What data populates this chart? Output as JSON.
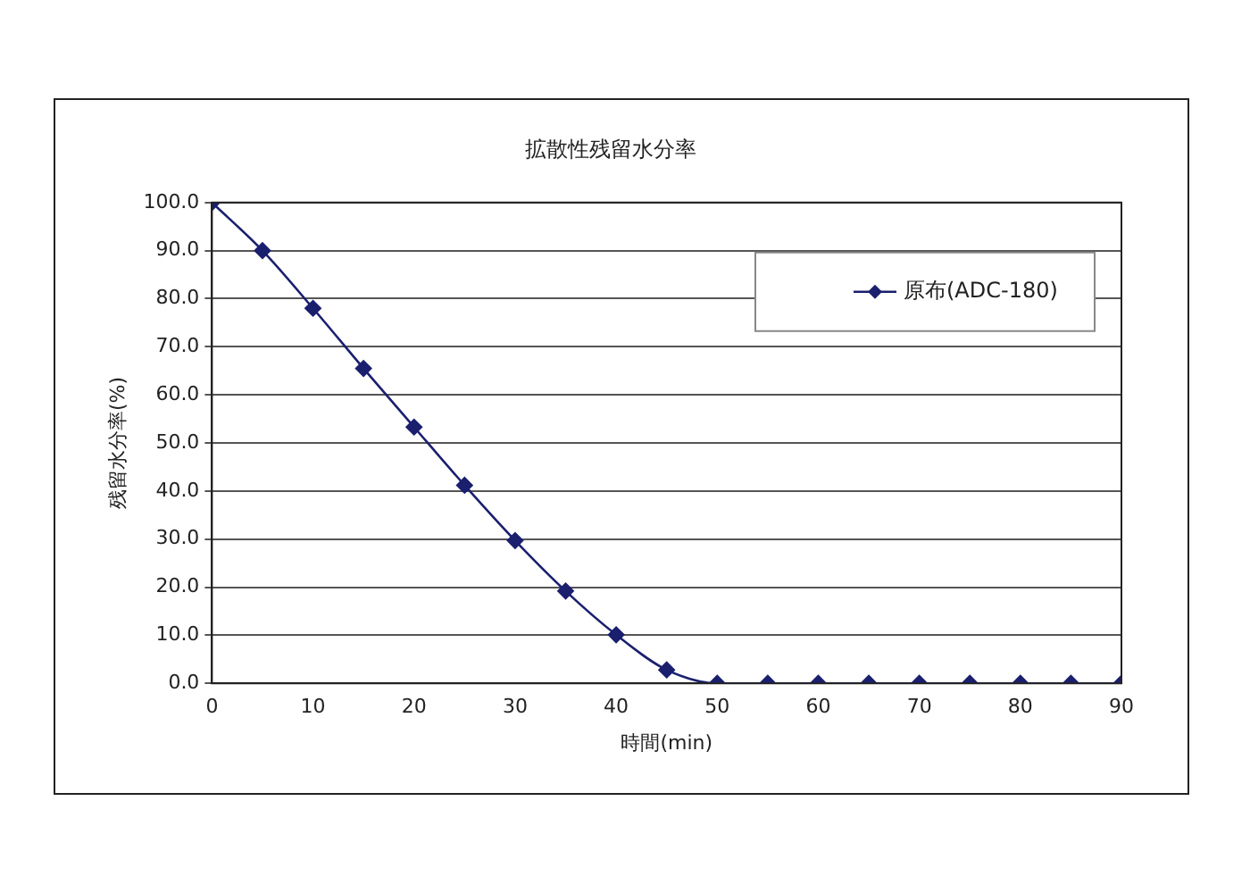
{
  "chart_data": {
    "type": "line",
    "title": "拡散性残留水分率",
    "xlabel": "時間(min)",
    "ylabel": "残留水分率(%)",
    "x": [
      0,
      5,
      10,
      15,
      20,
      25,
      30,
      35,
      40,
      45,
      50,
      55,
      60,
      65,
      70,
      75,
      80,
      85,
      90
    ],
    "series": [
      {
        "name": "原布(ADC-180)",
        "color": "#1a1f6e",
        "values": [
          100,
          90,
          78,
          65.5,
          53.3,
          41.2,
          29.7,
          19.2,
          10.1,
          2.8,
          0,
          0,
          0,
          0,
          0,
          0,
          0,
          0,
          0
        ]
      }
    ],
    "xlim": [
      0,
      90
    ],
    "xticks": [
      0,
      10,
      20,
      30,
      40,
      50,
      60,
      70,
      80,
      90
    ],
    "ylim": [
      0,
      100
    ],
    "yticks": [
      {
        "value": 0,
        "label": "0.0"
      },
      {
        "value": 10,
        "label": "10.0"
      },
      {
        "value": 20,
        "label": "20.0"
      },
      {
        "value": 30,
        "label": "30.0"
      },
      {
        "value": 40,
        "label": "40.0"
      },
      {
        "value": 50,
        "label": "50.0"
      },
      {
        "value": 60,
        "label": "60.0"
      },
      {
        "value": 70,
        "label": "70.0"
      },
      {
        "value": 80,
        "label": "80.0"
      },
      {
        "value": 90,
        "label": "90.0"
      },
      {
        "value": 100,
        "label": "100.0"
      }
    ],
    "grid": "y",
    "legend": "top right",
    "marker": "diamond",
    "line_style": "solid"
  }
}
